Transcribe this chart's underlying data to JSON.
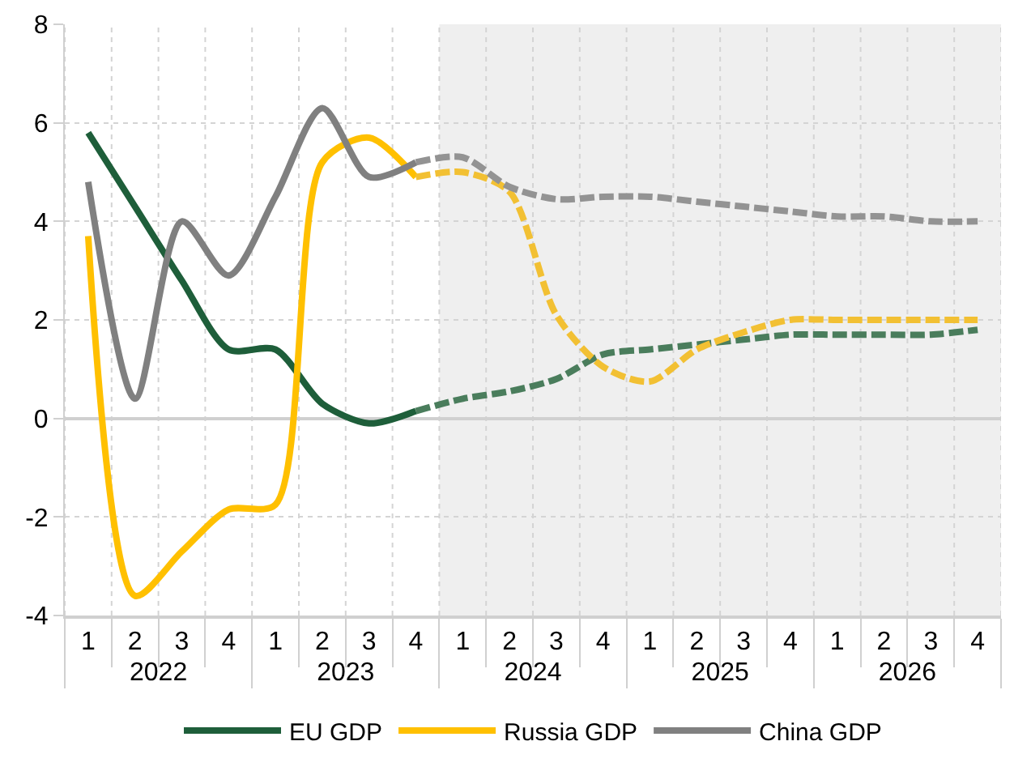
{
  "chart_data": {
    "type": "line",
    "categories": [
      "1",
      "2",
      "3",
      "4",
      "1",
      "2",
      "3",
      "4",
      "1",
      "2",
      "3",
      "4",
      "1",
      "2",
      "3",
      "4",
      "1",
      "2",
      "3",
      "4"
    ],
    "annotations": [
      "2022",
      "2023",
      "2024",
      "2025",
      "2026"
    ],
    "series": [
      {
        "name": "EU GDP",
        "color": "#1e5e3a",
        "line_style": "solid",
        "values": [
          5.8,
          4.3,
          2.8,
          1.4,
          1.4,
          0.3,
          -0.1,
          0.15,
          null,
          null,
          null,
          null,
          null,
          null,
          null,
          null,
          null,
          null,
          null,
          null
        ]
      },
      {
        "name": "Russia GDP",
        "color": "#ffc000",
        "line_style": "solid",
        "values": [
          3.7,
          -3.6,
          -2.7,
          -1.85,
          -1.75,
          5.2,
          5.7,
          4.9,
          null,
          null,
          null,
          null,
          null,
          null,
          null,
          null,
          null,
          null,
          null,
          null
        ]
      },
      {
        "name": "China GDP",
        "color": "#808080",
        "line_style": "solid",
        "values": [
          4.8,
          0.4,
          4.0,
          2.9,
          4.5,
          6.3,
          4.9,
          5.2,
          null,
          null,
          null,
          null,
          null,
          null,
          null,
          null,
          null,
          null,
          null,
          null
        ]
      },
      {
        "color": "#4a7d5c",
        "line_style": "dashed",
        "values": [
          null,
          null,
          null,
          null,
          null,
          null,
          null,
          0.15,
          0.4,
          0.55,
          0.8,
          1.3,
          1.4,
          1.5,
          1.6,
          1.7,
          1.7,
          1.7,
          1.7,
          1.8
        ]
      },
      {
        "color": "#f2c033",
        "line_style": "dashed",
        "values": [
          null,
          null,
          null,
          null,
          null,
          null,
          null,
          4.9,
          5.0,
          4.6,
          2.1,
          1.05,
          0.75,
          1.4,
          1.75,
          2.0,
          2.0,
          2.0,
          2.0,
          2.0
        ]
      },
      {
        "color": "#939393",
        "line_style": "dashed",
        "values": [
          null,
          null,
          null,
          null,
          null,
          null,
          null,
          5.2,
          5.3,
          4.7,
          4.45,
          4.5,
          4.5,
          4.4,
          4.3,
          4.2,
          4.1,
          4.1,
          4.0,
          4.0
        ]
      }
    ],
    "ylim": [
      -4,
      8
    ],
    "yticks": [
      -4,
      -2,
      0,
      2,
      4,
      6,
      8
    ],
    "grid": true,
    "legend": "bottom",
    "marker": "none"
  }
}
